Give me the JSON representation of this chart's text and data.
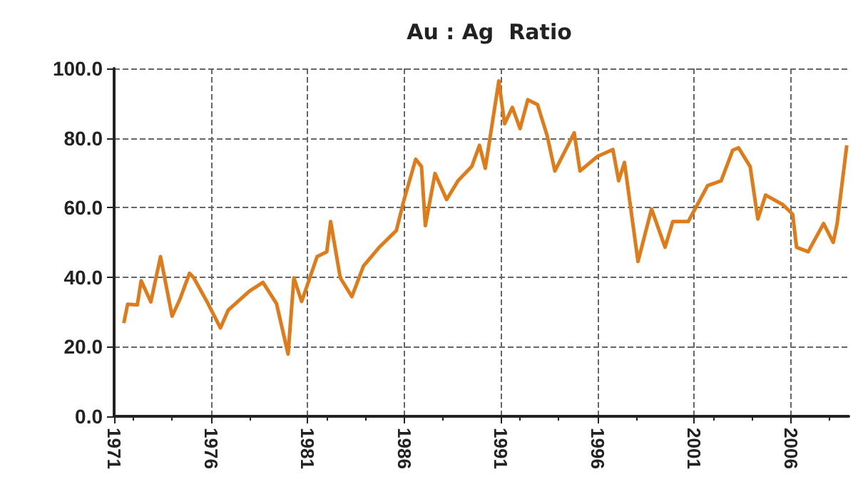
{
  "chart_data": {
    "type": "line",
    "title": "Au : Ag  Ratio",
    "x": [
      1971.5,
      1971.7,
      1972.2,
      1972.4,
      1972.9,
      1973.4,
      1974.0,
      1974.4,
      1974.9,
      1975.1,
      1975.8,
      1976.5,
      1976.9,
      1978.0,
      1978.7,
      1979.4,
      1980.0,
      1980.3,
      1980.7,
      1981.5,
      1982.0,
      1982.2,
      1982.7,
      1983.3,
      1983.9,
      1984.7,
      1985.6,
      1986.0,
      1986.6,
      1986.9,
      1987.1,
      1987.6,
      1988.2,
      1988.8,
      1989.5,
      1989.9,
      1990.2,
      1990.9,
      1991.2,
      1991.6,
      1992.0,
      1992.4,
      1992.9,
      1993.4,
      1993.8,
      1994.8,
      1995.1,
      1996.0,
      1996.8,
      1997.1,
      1997.4,
      1998.1,
      1998.8,
      1999.5,
      1999.9,
      2000.7,
      2001.7,
      2002.4,
      2003.0,
      2003.3,
      2003.9,
      2004.3,
      2004.7,
      2005.6,
      2006.1,
      2006.3,
      2006.9,
      2007.7,
      2008.2,
      2008.4,
      2008.9
    ],
    "series": [
      {
        "color": "#e07b1a",
        "values": [
          26.8,
          32.2,
          32,
          39,
          32.9,
          45.9,
          28.8,
          33.6,
          41.1,
          40,
          33,
          25.4,
          30.5,
          36,
          38.5,
          32.4,
          17.9,
          39.8,
          33,
          45.9,
          47.3,
          56,
          39.8,
          34.4,
          43.2,
          48.5,
          53.4,
          62.3,
          73.9,
          71.8,
          54.8,
          69.8,
          62.3,
          67.8,
          71.8,
          77.9,
          71.3,
          96.4,
          84.1,
          88.8,
          82.7,
          91,
          89.6,
          80.7,
          70.5,
          81.5,
          70.5,
          74.7,
          76.7,
          67.7,
          73,
          44.5,
          59.6,
          48.6,
          56,
          56,
          66.3,
          67.7,
          76.5,
          77.2,
          71.8,
          56.7,
          63.6,
          60.8,
          58.1,
          48.6,
          47.3,
          55.4,
          50,
          55.4,
          77.9
        ]
      }
    ],
    "xlim": [
      1971,
      2009
    ],
    "xticks": [
      1971,
      1976,
      1981,
      1986,
      1991,
      1996,
      2001,
      2006
    ],
    "ylim": [
      0,
      100
    ],
    "yticks": [
      {
        "value": 0,
        "label": "0.0"
      },
      {
        "value": 20,
        "label": "20.0"
      },
      {
        "value": 40,
        "label": "40.0"
      },
      {
        "value": 60,
        "label": "60.0"
      },
      {
        "value": 80,
        "label": "80.0"
      },
      {
        "value": 100,
        "label": "100.0"
      }
    ],
    "grid": true,
    "marker": "none",
    "line_style": "solid"
  }
}
